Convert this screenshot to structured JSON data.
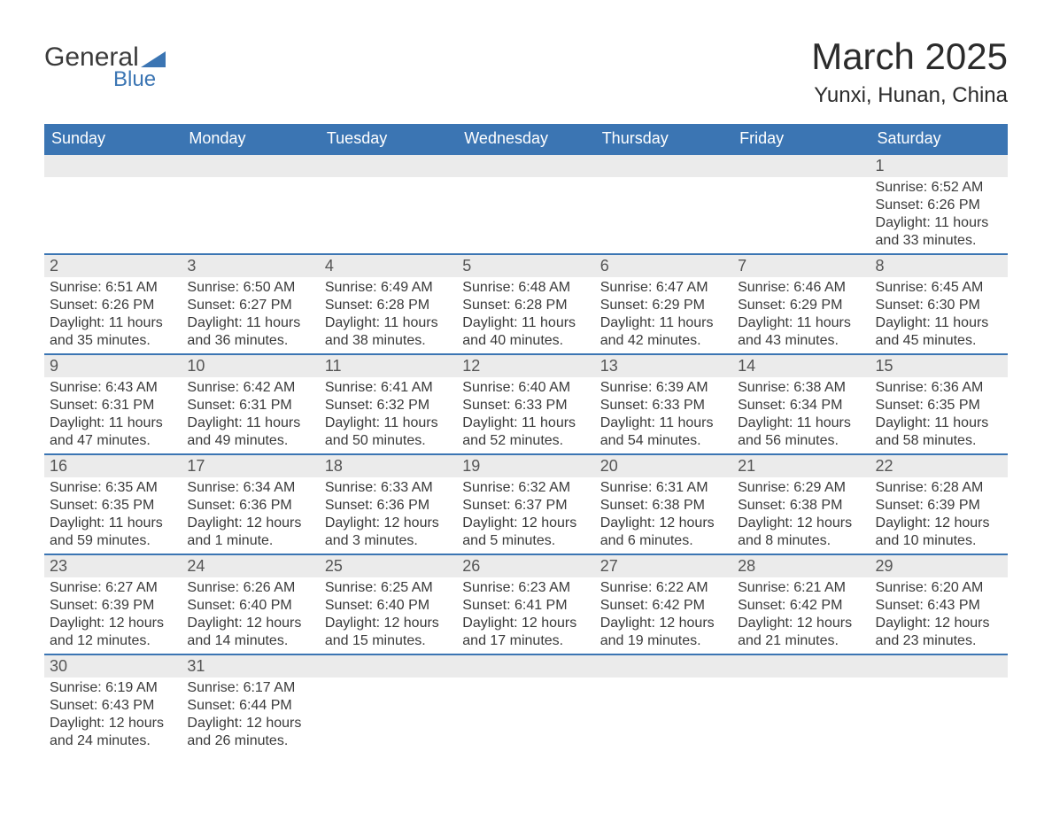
{
  "logo": {
    "line1": "General",
    "line2": "Blue",
    "tri_color": "#3b75b3"
  },
  "title": "March 2025",
  "location": "Yunxi, Hunan, China",
  "colors": {
    "header_bg": "#3b75b3",
    "header_fg": "#ffffff",
    "daynum_bg": "#ebebeb",
    "row_border": "#3b75b3",
    "text": "#3a3a3a"
  },
  "weekdays": [
    "Sunday",
    "Monday",
    "Tuesday",
    "Wednesday",
    "Thursday",
    "Friday",
    "Saturday"
  ],
  "weeks": [
    [
      null,
      null,
      null,
      null,
      null,
      null,
      {
        "n": 1,
        "sr": "6:52 AM",
        "ss": "6:26 PM",
        "dl": "11 hours and 33 minutes."
      }
    ],
    [
      {
        "n": 2,
        "sr": "6:51 AM",
        "ss": "6:26 PM",
        "dl": "11 hours and 35 minutes."
      },
      {
        "n": 3,
        "sr": "6:50 AM",
        "ss": "6:27 PM",
        "dl": "11 hours and 36 minutes."
      },
      {
        "n": 4,
        "sr": "6:49 AM",
        "ss": "6:28 PM",
        "dl": "11 hours and 38 minutes."
      },
      {
        "n": 5,
        "sr": "6:48 AM",
        "ss": "6:28 PM",
        "dl": "11 hours and 40 minutes."
      },
      {
        "n": 6,
        "sr": "6:47 AM",
        "ss": "6:29 PM",
        "dl": "11 hours and 42 minutes."
      },
      {
        "n": 7,
        "sr": "6:46 AM",
        "ss": "6:29 PM",
        "dl": "11 hours and 43 minutes."
      },
      {
        "n": 8,
        "sr": "6:45 AM",
        "ss": "6:30 PM",
        "dl": "11 hours and 45 minutes."
      }
    ],
    [
      {
        "n": 9,
        "sr": "6:43 AM",
        "ss": "6:31 PM",
        "dl": "11 hours and 47 minutes."
      },
      {
        "n": 10,
        "sr": "6:42 AM",
        "ss": "6:31 PM",
        "dl": "11 hours and 49 minutes."
      },
      {
        "n": 11,
        "sr": "6:41 AM",
        "ss": "6:32 PM",
        "dl": "11 hours and 50 minutes."
      },
      {
        "n": 12,
        "sr": "6:40 AM",
        "ss": "6:33 PM",
        "dl": "11 hours and 52 minutes."
      },
      {
        "n": 13,
        "sr": "6:39 AM",
        "ss": "6:33 PM",
        "dl": "11 hours and 54 minutes."
      },
      {
        "n": 14,
        "sr": "6:38 AM",
        "ss": "6:34 PM",
        "dl": "11 hours and 56 minutes."
      },
      {
        "n": 15,
        "sr": "6:36 AM",
        "ss": "6:35 PM",
        "dl": "11 hours and 58 minutes."
      }
    ],
    [
      {
        "n": 16,
        "sr": "6:35 AM",
        "ss": "6:35 PM",
        "dl": "11 hours and 59 minutes."
      },
      {
        "n": 17,
        "sr": "6:34 AM",
        "ss": "6:36 PM",
        "dl": "12 hours and 1 minute."
      },
      {
        "n": 18,
        "sr": "6:33 AM",
        "ss": "6:36 PM",
        "dl": "12 hours and 3 minutes."
      },
      {
        "n": 19,
        "sr": "6:32 AM",
        "ss": "6:37 PM",
        "dl": "12 hours and 5 minutes."
      },
      {
        "n": 20,
        "sr": "6:31 AM",
        "ss": "6:38 PM",
        "dl": "12 hours and 6 minutes."
      },
      {
        "n": 21,
        "sr": "6:29 AM",
        "ss": "6:38 PM",
        "dl": "12 hours and 8 minutes."
      },
      {
        "n": 22,
        "sr": "6:28 AM",
        "ss": "6:39 PM",
        "dl": "12 hours and 10 minutes."
      }
    ],
    [
      {
        "n": 23,
        "sr": "6:27 AM",
        "ss": "6:39 PM",
        "dl": "12 hours and 12 minutes."
      },
      {
        "n": 24,
        "sr": "6:26 AM",
        "ss": "6:40 PM",
        "dl": "12 hours and 14 minutes."
      },
      {
        "n": 25,
        "sr": "6:25 AM",
        "ss": "6:40 PM",
        "dl": "12 hours and 15 minutes."
      },
      {
        "n": 26,
        "sr": "6:23 AM",
        "ss": "6:41 PM",
        "dl": "12 hours and 17 minutes."
      },
      {
        "n": 27,
        "sr": "6:22 AM",
        "ss": "6:42 PM",
        "dl": "12 hours and 19 minutes."
      },
      {
        "n": 28,
        "sr": "6:21 AM",
        "ss": "6:42 PM",
        "dl": "12 hours and 21 minutes."
      },
      {
        "n": 29,
        "sr": "6:20 AM",
        "ss": "6:43 PM",
        "dl": "12 hours and 23 minutes."
      }
    ],
    [
      {
        "n": 30,
        "sr": "6:19 AM",
        "ss": "6:43 PM",
        "dl": "12 hours and 24 minutes."
      },
      {
        "n": 31,
        "sr": "6:17 AM",
        "ss": "6:44 PM",
        "dl": "12 hours and 26 minutes."
      },
      null,
      null,
      null,
      null,
      null
    ]
  ],
  "labels": {
    "sunrise": "Sunrise:",
    "sunset": "Sunset:",
    "daylight": "Daylight:"
  }
}
